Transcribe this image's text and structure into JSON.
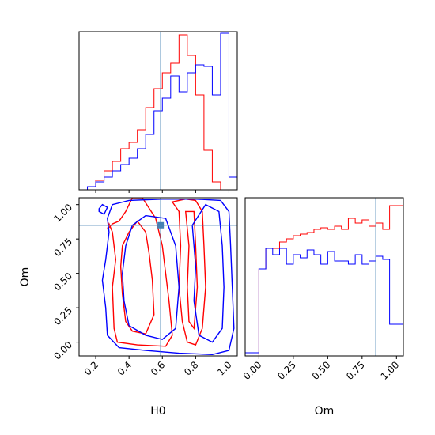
{
  "chart_data": [
    {
      "type": "histogram",
      "panel": "top-left",
      "xlabel": "H0",
      "xlim": [
        0.1,
        1.05
      ],
      "truth": 0.59,
      "colors": {
        "red": "#ff0000",
        "blue": "#0000ff",
        "truth": "#4682b4"
      },
      "bins": [
        0.1,
        0.15,
        0.2,
        0.25,
        0.3,
        0.35,
        0.4,
        0.45,
        0.5,
        0.55,
        0.6,
        0.65,
        0.7,
        0.75,
        0.8,
        0.85,
        0.9,
        0.95,
        1.0,
        1.05
      ],
      "series": [
        {
          "color": "red",
          "values": [
            0,
            0.02,
            0.06,
            0.12,
            0.18,
            0.26,
            0.3,
            0.38,
            0.52,
            0.64,
            0.74,
            0.8,
            0.98,
            0.85,
            0.6,
            0.25,
            0.05,
            0,
            0
          ]
        },
        {
          "color": "blue",
          "values": [
            0,
            0.02,
            0.05,
            0.08,
            0.12,
            0.16,
            0.2,
            0.26,
            0.35,
            0.5,
            0.58,
            0.72,
            0.62,
            0.74,
            0.79,
            0.78,
            0.6,
            0.99,
            0.08
          ]
        }
      ]
    },
    {
      "type": "contour",
      "panel": "bottom-left",
      "xlabel": "H0",
      "ylabel": "Om",
      "xlim": [
        0.1,
        1.05
      ],
      "ylim": [
        -0.1,
        1.05
      ],
      "xticks": [
        "0.2",
        "0.4",
        "0.6",
        "0.8",
        "1.0"
      ],
      "yticks": [
        "0.00",
        "0.25",
        "0.50",
        "0.75",
        "1.00"
      ],
      "truth": {
        "x": 0.59,
        "y": 0.85
      },
      "contours": [
        {
          "color": "red",
          "points": [
            [
              0.27,
              0.82
            ],
            [
              0.28,
              0.86
            ],
            [
              0.3,
              0.8
            ],
            [
              0.32,
              0.6
            ],
            [
              0.3,
              0.4
            ],
            [
              0.31,
              0.1
            ],
            [
              0.33,
              0.0
            ],
            [
              0.45,
              -0.02
            ],
            [
              0.62,
              -0.03
            ],
            [
              0.66,
              0.05
            ],
            [
              0.64,
              0.3
            ],
            [
              0.62,
              0.5
            ],
            [
              0.6,
              0.7
            ],
            [
              0.56,
              0.9
            ],
            [
              0.48,
              1.05
            ],
            [
              0.42,
              1.05
            ],
            [
              0.38,
              0.95
            ],
            [
              0.34,
              0.88
            ],
            [
              0.3,
              0.86
            ]
          ]
        },
        {
          "color": "red",
          "points": [
            [
              0.36,
              0.7
            ],
            [
              0.35,
              0.55
            ],
            [
              0.36,
              0.35
            ],
            [
              0.38,
              0.15
            ],
            [
              0.42,
              0.08
            ],
            [
              0.5,
              0.06
            ],
            [
              0.55,
              0.2
            ],
            [
              0.54,
              0.45
            ],
            [
              0.52,
              0.65
            ],
            [
              0.5,
              0.8
            ],
            [
              0.45,
              0.88
            ],
            [
              0.4,
              0.8
            ]
          ]
        },
        {
          "color": "red",
          "points": [
            [
              0.66,
              1.02
            ],
            [
              0.7,
              0.95
            ],
            [
              0.71,
              0.7
            ],
            [
              0.7,
              0.4
            ],
            [
              0.72,
              0.15
            ],
            [
              0.75,
              0.0
            ],
            [
              0.8,
              -0.02
            ],
            [
              0.84,
              0.1
            ],
            [
              0.86,
              0.4
            ],
            [
              0.85,
              0.7
            ],
            [
              0.84,
              0.95
            ],
            [
              0.8,
              1.03
            ],
            [
              0.74,
              1.04
            ]
          ]
        },
        {
          "color": "red",
          "points": [
            [
              0.74,
              0.95
            ],
            [
              0.76,
              0.7
            ],
            [
              0.75,
              0.4
            ],
            [
              0.76,
              0.15
            ],
            [
              0.79,
              0.1
            ],
            [
              0.81,
              0.4
            ],
            [
              0.8,
              0.7
            ],
            [
              0.79,
              0.95
            ]
          ]
        },
        {
          "color": "blue",
          "points": [
            [
              0.22,
              0.97
            ],
            [
              0.24,
              1.0
            ],
            [
              0.27,
              0.98
            ],
            [
              0.25,
              0.93
            ],
            [
              0.22,
              0.95
            ]
          ]
        },
        {
          "color": "blue",
          "points": [
            [
              0.28,
              0.8
            ],
            [
              0.26,
              0.6
            ],
            [
              0.24,
              0.45
            ],
            [
              0.26,
              0.25
            ],
            [
              0.27,
              0.05
            ],
            [
              0.34,
              -0.04
            ],
            [
              0.5,
              -0.06
            ],
            [
              0.7,
              -0.08
            ],
            [
              0.9,
              -0.09
            ],
            [
              1.0,
              -0.06
            ],
            [
              1.03,
              0.1
            ],
            [
              1.02,
              0.4
            ],
            [
              1.01,
              0.7
            ],
            [
              1.0,
              0.95
            ],
            [
              0.95,
              1.03
            ],
            [
              0.8,
              1.04
            ],
            [
              0.6,
              1.04
            ],
            [
              0.4,
              1.03
            ],
            [
              0.3,
              1.0
            ],
            [
              0.27,
              0.9
            ]
          ]
        },
        {
          "color": "blue",
          "points": [
            [
              0.38,
              0.7
            ],
            [
              0.36,
              0.5
            ],
            [
              0.37,
              0.3
            ],
            [
              0.4,
              0.12
            ],
            [
              0.5,
              0.05
            ],
            [
              0.6,
              0.02
            ],
            [
              0.68,
              0.1
            ],
            [
              0.7,
              0.4
            ],
            [
              0.68,
              0.7
            ],
            [
              0.62,
              0.9
            ],
            [
              0.5,
              0.92
            ],
            [
              0.42,
              0.85
            ]
          ]
        },
        {
          "color": "blue",
          "points": [
            [
              0.78,
              0.85
            ],
            [
              0.8,
              0.55
            ],
            [
              0.79,
              0.3
            ],
            [
              0.82,
              0.05
            ],
            [
              0.9,
              0.0
            ],
            [
              0.96,
              0.1
            ],
            [
              0.97,
              0.4
            ],
            [
              0.96,
              0.7
            ],
            [
              0.94,
              0.95
            ],
            [
              0.86,
              1.0
            ]
          ]
        }
      ]
    },
    {
      "type": "histogram",
      "panel": "bottom-right",
      "xlabel": "Om",
      "xlim": [
        -0.1,
        1.05
      ],
      "xticks": [
        "0.00",
        "0.25",
        "0.50",
        "0.75",
        "1.00"
      ],
      "truth": 0.85,
      "bins": [
        -0.1,
        -0.05,
        0.0,
        0.05,
        0.1,
        0.15,
        0.2,
        0.25,
        0.3,
        0.35,
        0.4,
        0.45,
        0.5,
        0.55,
        0.6,
        0.65,
        0.7,
        0.75,
        0.8,
        0.85,
        0.9,
        0.95,
        1.0,
        1.05
      ],
      "series": [
        {
          "color": "red",
          "values": [
            0,
            0,
            0.55,
            0.68,
            0.68,
            0.72,
            0.74,
            0.76,
            0.77,
            0.78,
            0.8,
            0.81,
            0.8,
            0.82,
            0.8,
            0.87,
            0.84,
            0.86,
            0.82,
            0.84,
            0.8,
            0.95,
            0.95
          ]
        },
        {
          "color": "blue",
          "values": [
            0.02,
            0.02,
            0.55,
            0.68,
            0.64,
            0.68,
            0.58,
            0.64,
            0.62,
            0.67,
            0.64,
            0.58,
            0.66,
            0.6,
            0.6,
            0.58,
            0.64,
            0.58,
            0.6,
            0.63,
            0.61,
            0.2,
            0.2
          ]
        }
      ]
    }
  ]
}
